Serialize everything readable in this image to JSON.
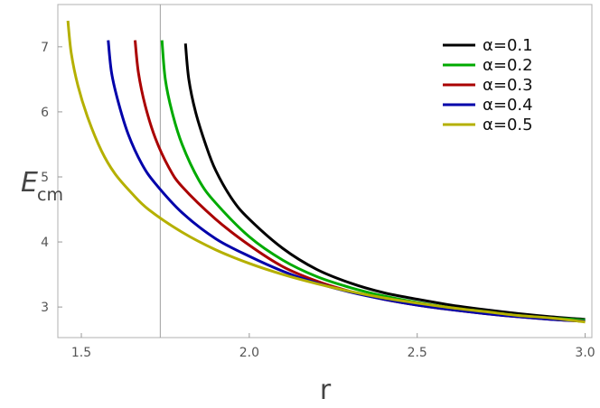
{
  "chart_data": {
    "type": "line",
    "xlabel": "r",
    "ylabel": "E",
    "ylabel_sub": "cm",
    "xlim": [
      1.43,
      3.02
    ],
    "ylim": [
      2.53,
      7.65
    ],
    "x_ticks": [
      "1.5",
      "2.0",
      "2.5",
      "3.0"
    ],
    "y_ticks": [
      "3",
      "4",
      "5",
      "6",
      "7"
    ],
    "x_tick_values": [
      1.5,
      2.0,
      2.5,
      3.0
    ],
    "y_tick_values": [
      3,
      4,
      5,
      6,
      7
    ],
    "vertical_line_x": 1.735,
    "legend_position": "top-right",
    "series": [
      {
        "name": "α=0.1",
        "color": "#000000",
        "x": [
          1.81,
          1.82,
          1.84,
          1.87,
          1.9,
          1.95,
          2.0,
          2.1,
          2.2,
          2.3,
          2.4,
          2.5,
          2.6,
          2.7,
          2.8,
          2.9,
          3.0
        ],
        "y": [
          7.05,
          6.5,
          6.0,
          5.5,
          5.1,
          4.65,
          4.35,
          3.9,
          3.58,
          3.37,
          3.22,
          3.12,
          3.03,
          2.96,
          2.9,
          2.85,
          2.81
        ]
      },
      {
        "name": "α=0.2",
        "color": "#00aa00",
        "x": [
          1.74,
          1.75,
          1.77,
          1.8,
          1.85,
          1.9,
          2.0,
          2.1,
          2.2,
          2.3,
          2.4,
          2.5,
          2.6,
          2.7,
          2.8,
          2.9,
          3.0
        ],
        "y": [
          7.1,
          6.5,
          6.0,
          5.5,
          4.95,
          4.6,
          4.08,
          3.72,
          3.47,
          3.3,
          3.17,
          3.07,
          2.99,
          2.93,
          2.87,
          2.83,
          2.8
        ]
      },
      {
        "name": "α=0.3",
        "color": "#aa0000",
        "x": [
          1.66,
          1.67,
          1.69,
          1.72,
          1.76,
          1.8,
          1.9,
          2.0,
          2.1,
          2.2,
          2.3,
          2.4,
          2.5,
          2.6,
          2.7,
          2.8,
          2.9,
          3.0
        ],
        "y": [
          7.1,
          6.6,
          6.1,
          5.6,
          5.15,
          4.85,
          4.35,
          3.95,
          3.62,
          3.4,
          3.24,
          3.12,
          3.03,
          2.96,
          2.9,
          2.85,
          2.81,
          2.78
        ]
      },
      {
        "name": "α=0.4",
        "color": "#0000aa",
        "x": [
          1.58,
          1.59,
          1.61,
          1.64,
          1.68,
          1.72,
          1.8,
          1.9,
          2.0,
          2.1,
          2.2,
          2.3,
          2.4,
          2.5,
          2.6,
          2.7,
          2.8,
          2.9,
          3.0
        ],
        "y": [
          7.1,
          6.6,
          6.15,
          5.65,
          5.2,
          4.9,
          4.45,
          4.05,
          3.78,
          3.55,
          3.37,
          3.23,
          3.12,
          3.03,
          2.96,
          2.9,
          2.85,
          2.81,
          2.78
        ]
      },
      {
        "name": "α=0.5",
        "color": "#b5b000",
        "x": [
          1.46,
          1.47,
          1.49,
          1.52,
          1.56,
          1.6,
          1.65,
          1.7,
          1.8,
          1.9,
          2.0,
          2.1,
          2.2,
          2.3,
          2.4,
          2.5,
          2.6,
          2.7,
          2.8,
          2.9,
          3.0
        ],
        "y": [
          7.4,
          6.9,
          6.4,
          5.9,
          5.4,
          5.05,
          4.75,
          4.5,
          4.15,
          3.88,
          3.67,
          3.5,
          3.36,
          3.24,
          3.14,
          3.06,
          2.99,
          2.93,
          2.87,
          2.83,
          2.77
        ]
      }
    ]
  }
}
